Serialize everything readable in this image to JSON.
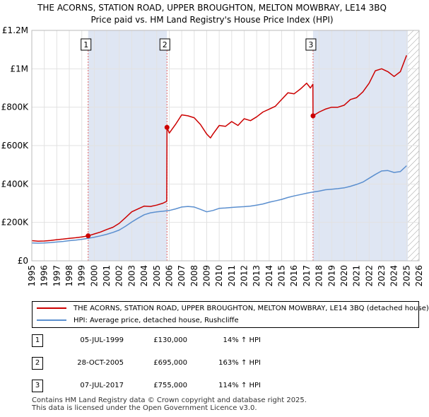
{
  "title": {
    "line1": "THE ACORNS, STATION ROAD, UPPER BROUGHTON, MELTON MOWBRAY, LE14 3BQ",
    "line2": "Price paid vs. HM Land Registry's House Price Index (HPI)"
  },
  "colors": {
    "property": "#cc0000",
    "hpi": "#5b8fcf",
    "shade": "#dfe6f3",
    "grid": "#e2e2e2",
    "marker_line": "#e06666",
    "hatch": "#999999"
  },
  "legend": {
    "property_label": "THE ACORNS, STATION ROAD, UPPER BROUGHTON, MELTON MOWBRAY, LE14 3BQ (detached house)",
    "hpi_label": "HPI: Average price, detached house, Rushcliffe"
  },
  "transactions": [
    {
      "num": "1",
      "date": "05-JUL-1999",
      "price": "£130,000",
      "hpi_change": "14% ↑ HPI"
    },
    {
      "num": "2",
      "date": "28-OCT-2005",
      "price": "£695,000",
      "hpi_change": "163% ↑ HPI"
    },
    {
      "num": "3",
      "date": "07-JUL-2017",
      "price": "£755,000",
      "hpi_change": "114% ↑ HPI"
    }
  ],
  "footer": {
    "line1": "Contains HM Land Registry data © Crown copyright and database right 2025.",
    "line2": "This data is licensed under the Open Government Licence v3.0."
  },
  "chart_data": {
    "type": "line",
    "title": "Price paid vs. HM Land Registry's House Price Index (HPI)",
    "xlabel": "",
    "ylabel": "",
    "xlim": [
      1995,
      2026
    ],
    "ylim": [
      0,
      1200000
    ],
    "grid": true,
    "legend_position": "bottom",
    "x_ticks": [
      1995,
      1996,
      1997,
      1998,
      1999,
      2000,
      2001,
      2002,
      2003,
      2004,
      2005,
      2006,
      2007,
      2008,
      2009,
      2010,
      2011,
      2012,
      2013,
      2014,
      2015,
      2016,
      2017,
      2018,
      2019,
      2020,
      2021,
      2022,
      2023,
      2024,
      2025,
      2026
    ],
    "y_ticks": [
      {
        "value": 0,
        "label": "£0"
      },
      {
        "value": 200000,
        "label": "£200K"
      },
      {
        "value": 400000,
        "label": "£400K"
      },
      {
        "value": 600000,
        "label": "£600K"
      },
      {
        "value": 800000,
        "label": "£800K"
      },
      {
        "value": 1000000,
        "label": "£1M"
      },
      {
        "value": 1200000,
        "label": "£1.2M"
      }
    ],
    "shaded_regions": [
      {
        "from": 1999.51,
        "to": 2005.82
      },
      {
        "from": 2017.51,
        "to": 2025.1
      }
    ],
    "hatched_region": {
      "from": 2025.1,
      "to": 2026
    },
    "markers": [
      {
        "label": "1",
        "x": 1999.51,
        "y": 130000
      },
      {
        "label": "2",
        "x": 2005.82,
        "y": 695000
      },
      {
        "label": "3",
        "x": 2017.51,
        "y": 755000
      }
    ],
    "series": [
      {
        "name": "THE ACORNS, STATION ROAD, UPPER BROUGHTON, MELTON MOWBRAY, LE14 3BQ (detached house)",
        "color": "#cc0000",
        "x": [
          1995.0,
          1995.5,
          1996.0,
          1996.5,
          1997.0,
          1997.5,
          1998.0,
          1998.5,
          1999.0,
          1999.51,
          2000.0,
          2000.5,
          2001.0,
          2001.5,
          2002.0,
          2002.5,
          2003.0,
          2003.5,
          2004.0,
          2004.5,
          2005.0,
          2005.5,
          2005.8,
          2005.82,
          2006.0,
          2006.5,
          2007.0,
          2007.5,
          2008.0,
          2008.5,
          2009.0,
          2009.3,
          2009.5,
          2010.0,
          2010.5,
          2011.0,
          2011.5,
          2012.0,
          2012.5,
          2013.0,
          2013.5,
          2014.0,
          2014.5,
          2015.0,
          2015.5,
          2016.0,
          2016.5,
          2017.0,
          2017.3,
          2017.5,
          2017.51,
          2018.0,
          2018.5,
          2019.0,
          2019.5,
          2020.0,
          2020.5,
          2021.0,
          2021.5,
          2022.0,
          2022.5,
          2023.0,
          2023.5,
          2024.0,
          2024.5,
          2025.0
        ],
        "y": [
          105000,
          102000,
          103000,
          106000,
          110000,
          113000,
          117000,
          120000,
          124000,
          130000,
          140000,
          150000,
          163000,
          175000,
          195000,
          225000,
          255000,
          270000,
          285000,
          283000,
          290000,
          300000,
          310000,
          695000,
          665000,
          710000,
          760000,
          755000,
          745000,
          710000,
          660000,
          640000,
          660000,
          705000,
          700000,
          725000,
          705000,
          740000,
          730000,
          750000,
          775000,
          790000,
          805000,
          840000,
          875000,
          870000,
          895000,
          925000,
          900000,
          920000,
          755000,
          775000,
          790000,
          800000,
          800000,
          810000,
          840000,
          850000,
          880000,
          925000,
          990000,
          1000000,
          985000,
          960000,
          985000,
          1070000
        ]
      },
      {
        "name": "HPI: Average price, detached house, Rushcliffe",
        "color": "#5b8fcf",
        "x": [
          1995.0,
          1995.5,
          1996.0,
          1996.5,
          1997.0,
          1997.5,
          1998.0,
          1998.5,
          1999.0,
          1999.5,
          2000.0,
          2000.5,
          2001.0,
          2001.5,
          2002.0,
          2002.5,
          2003.0,
          2003.5,
          2004.0,
          2004.5,
          2005.0,
          2005.5,
          2006.0,
          2006.5,
          2007.0,
          2007.5,
          2008.0,
          2008.5,
          2009.0,
          2009.5,
          2010.0,
          2010.5,
          2011.0,
          2011.5,
          2012.0,
          2012.5,
          2013.0,
          2013.5,
          2014.0,
          2014.5,
          2015.0,
          2015.5,
          2016.0,
          2016.5,
          2017.0,
          2017.5,
          2018.0,
          2018.5,
          2019.0,
          2019.5,
          2020.0,
          2020.5,
          2021.0,
          2021.5,
          2022.0,
          2022.5,
          2023.0,
          2023.5,
          2024.0,
          2024.5,
          2025.0
        ],
        "y": [
          93000,
          92000,
          93000,
          95000,
          98000,
          101000,
          105000,
          108000,
          112000,
          117000,
          123000,
          130000,
          138000,
          148000,
          160000,
          180000,
          202000,
          222000,
          240000,
          250000,
          255000,
          258000,
          262000,
          270000,
          280000,
          283000,
          280000,
          268000,
          255000,
          262000,
          273000,
          275000,
          278000,
          280000,
          282000,
          285000,
          290000,
          296000,
          305000,
          312000,
          320000,
          330000,
          338000,
          345000,
          352000,
          358000,
          363000,
          370000,
          373000,
          376000,
          380000,
          388000,
          398000,
          410000,
          430000,
          450000,
          468000,
          470000,
          460000,
          465000,
          495000
        ]
      }
    ]
  }
}
